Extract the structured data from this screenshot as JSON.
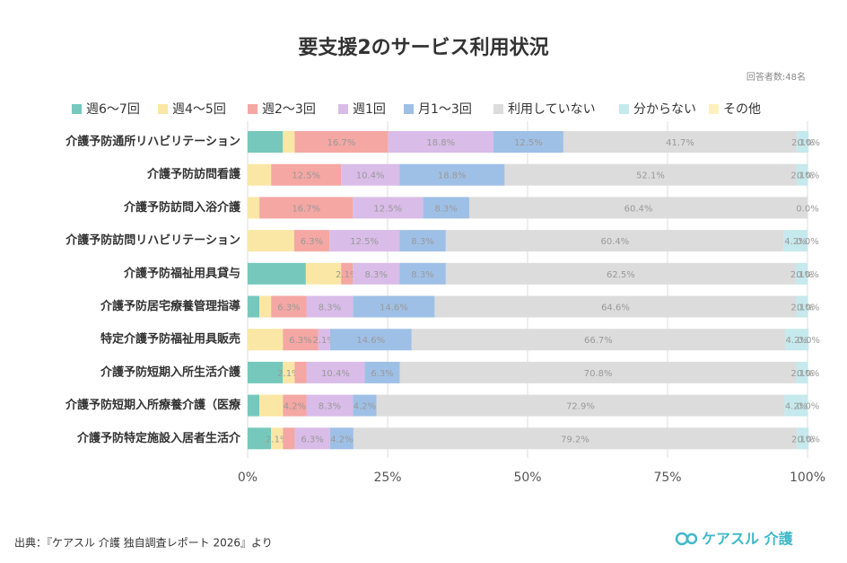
{
  "chart_data": {
    "type": "stacked-bar-horizontal",
    "title": "要支援2のサービス利用状況",
    "subtitle": "回答者数:48名",
    "source": "出典：『ケアスル 介護 独自調査レポート 2026』より",
    "brand": "ケアスル 介護",
    "categories": [
      "介護予防通所リハビリテーション",
      "介護予防訪問看護",
      "介護予防訪問入浴介護",
      "介護予防訪問リハビリテーション",
      "介護予防福祉用具貸与",
      "介護予防居宅療養管理指導",
      "特定介護予防福祉用具販売",
      "介護予防短期入所生活介護",
      "介護予防短期入所療養介護（医療",
      "介護予防特定施設入居者生活介"
    ],
    "series": [
      {
        "name": "週6～7回",
        "color": "#76c8bc",
        "values": [
          6.3,
          0,
          0,
          0,
          10.4,
          2.1,
          0,
          6.3,
          2.1,
          4.2
        ],
        "value_labels": [
          null,
          null,
          null,
          null,
          null,
          null,
          null,
          null,
          null,
          null
        ]
      },
      {
        "name": "週4～5回",
        "color": "#fae7a5",
        "values": [
          2.1,
          4.2,
          2.1,
          8.3,
          6.3,
          2.1,
          6.3,
          2.1,
          4.2,
          2.1
        ],
        "value_labels": [
          null,
          null,
          null,
          null,
          null,
          null,
          null,
          "2.1%",
          null,
          "2.1%"
        ]
      },
      {
        "name": "週2～3回",
        "color": "#f4a7a3",
        "values": [
          16.7,
          12.5,
          16.7,
          6.3,
          2.1,
          6.3,
          6.3,
          2.1,
          4.2,
          2.1
        ],
        "value_labels": [
          "16.7%",
          "12.5%",
          "16.7%",
          "6.3%",
          "2.1%",
          "6.3%",
          "6.3%",
          null,
          "4.2%",
          null
        ]
      },
      {
        "name": "週1回",
        "color": "#d9bce8",
        "values": [
          18.8,
          10.4,
          12.5,
          12.5,
          8.3,
          8.3,
          2.1,
          10.4,
          8.3,
          6.3
        ],
        "value_labels": [
          "18.8%",
          "10.4%",
          "12.5%",
          "12.5%",
          "8.3%",
          "8.3%",
          "2.1%",
          "10.4%",
          "8.3%",
          "6.3%"
        ]
      },
      {
        "name": "月1～3回",
        "color": "#9fc0e6",
        "values": [
          12.5,
          18.8,
          8.3,
          8.3,
          8.3,
          14.6,
          14.6,
          6.3,
          4.2,
          4.2
        ],
        "value_labels": [
          "12.5%",
          "18.8%",
          "8.3%",
          "8.3%",
          "8.3%",
          "14.6%",
          "14.6%",
          "6.3%",
          "4.2%",
          "4.2%"
        ]
      },
      {
        "name": "利用していない",
        "color": "#dcdcdc",
        "values": [
          41.7,
          52.1,
          60.4,
          60.4,
          62.5,
          64.6,
          66.7,
          70.8,
          72.9,
          79.2
        ],
        "value_labels": [
          "41.7%",
          "52.1%",
          "60.4%",
          "60.4%",
          "62.5%",
          "64.6%",
          "66.7%",
          "70.8%",
          "72.9%",
          "79.2%"
        ]
      },
      {
        "name": "分からない",
        "color": "#c5e9ec",
        "values": [
          2.1,
          2.1,
          0,
          4.2,
          2.1,
          2.1,
          4.2,
          2.1,
          4.2,
          2.1
        ],
        "value_labels": [
          "2.1%",
          "2.1%",
          null,
          "4.2%",
          "2.1%",
          "2.1%",
          "4.2%",
          "2.1%",
          "4.2%",
          "2.1%"
        ]
      },
      {
        "name": "その他",
        "color": "#fdf1bf",
        "values": [
          0,
          0,
          0,
          0,
          0,
          0,
          0,
          0,
          0,
          0
        ],
        "value_labels": [
          "0.0%",
          "0.0%",
          "0.0%",
          "0.0%",
          "0.0%",
          "0.0%",
          "0.0%",
          "0.0%",
          "0.0%",
          "0.0%"
        ]
      }
    ],
    "xlim": [
      0,
      100
    ],
    "xticks": [
      {
        "value": 0,
        "label": "0%"
      },
      {
        "value": 25,
        "label": "25%"
      },
      {
        "value": 50,
        "label": "50%"
      },
      {
        "value": 75,
        "label": "75%"
      },
      {
        "value": 100,
        "label": "100%"
      }
    ],
    "grid": true
  }
}
